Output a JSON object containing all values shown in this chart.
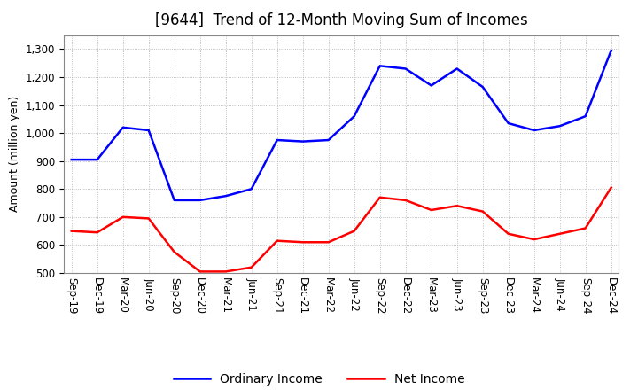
{
  "title": "[9644]  Trend of 12-Month Moving Sum of Incomes",
  "ylabel": "Amount (million yen)",
  "ylim": [
    500,
    1350
  ],
  "yticks": [
    500,
    600,
    700,
    800,
    900,
    1000,
    1100,
    1200,
    1300
  ],
  "x_labels": [
    "Sep-19",
    "Dec-19",
    "Mar-20",
    "Jun-20",
    "Sep-20",
    "Dec-20",
    "Mar-21",
    "Jun-21",
    "Sep-21",
    "Dec-21",
    "Mar-22",
    "Jun-22",
    "Sep-22",
    "Dec-22",
    "Mar-23",
    "Jun-23",
    "Sep-23",
    "Dec-23",
    "Mar-24",
    "Jun-24",
    "Sep-24",
    "Dec-24"
  ],
  "ordinary_income": [
    905,
    905,
    1020,
    1010,
    760,
    760,
    775,
    800,
    975,
    970,
    975,
    1060,
    1240,
    1230,
    1170,
    1230,
    1165,
    1035,
    1010,
    1025,
    1060,
    1295
  ],
  "net_income": [
    650,
    645,
    700,
    695,
    575,
    505,
    505,
    520,
    615,
    610,
    610,
    650,
    770,
    760,
    725,
    740,
    720,
    640,
    620,
    640,
    660,
    805
  ],
  "ordinary_income_color": "#0000ff",
  "net_income_color": "#ff0000",
  "line_width": 1.8,
  "grid_color": "#aaaaaa",
  "background_color": "#ffffff",
  "title_fontsize": 12,
  "label_fontsize": 9,
  "tick_fontsize": 8.5,
  "legend_fontsize": 10
}
